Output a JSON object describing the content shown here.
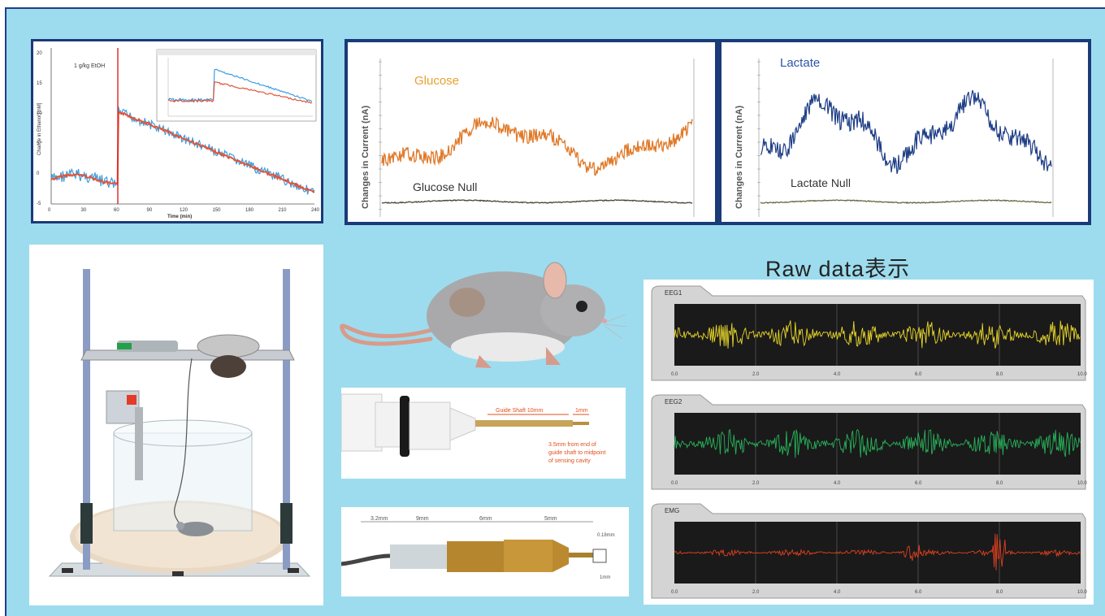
{
  "ethanol_chart": {
    "annotation": "1 g/kg EtOH",
    "ylabel": "Change in Ethanol [mM]",
    "xlabel": "Time (min)",
    "x_ticks": [
      "0",
      "30",
      "60",
      "90",
      "120",
      "150",
      "180",
      "210",
      "240"
    ],
    "y_ticks": [
      "20",
      "15",
      "10",
      "5",
      "0",
      "-5"
    ],
    "colors": {
      "raw": "#3a9ee0",
      "fit": "#e0553a",
      "marker": "#e02020"
    }
  },
  "glucose_chart": {
    "title": "Glucose",
    "null_label": "Glucose Null",
    "ylabel": "Changes in Current (nA)",
    "colors": {
      "trace": "#e07a2a",
      "title": "#e8a030",
      "null": "#444433"
    }
  },
  "lactate_chart": {
    "title": "Lactate",
    "null_label": "Lactate Null",
    "ylabel": "Changes in Current (nA)",
    "colors": {
      "trace": "#1f3e86",
      "title": "#2d55a6",
      "null": "#666644"
    }
  },
  "raw_data": {
    "heading": "Raw data表示",
    "channels": [
      {
        "name": "EEG1",
        "color": "#e8d62a"
      },
      {
        "name": "EEG2",
        "color": "#27b35a"
      },
      {
        "name": "EMG",
        "color": "#e04020"
      }
    ],
    "x_ticks": [
      "0.0",
      "2.0",
      "4.0",
      "6.0",
      "8.0",
      "10.0"
    ]
  },
  "probe_diagram": {
    "guide_label": "Guide Shaft 10mm",
    "tip_label": "1mm",
    "note_line1": "3.5mm from end of",
    "note_line2": "guide shaft to midpoint",
    "note_line3": "of sensing cavity",
    "accent": "#e0501e"
  },
  "electrode_diagram": {
    "dims": [
      "3.2mm",
      "9mm",
      "6mm",
      "5mm"
    ],
    "tip_dims": [
      "0.18mm",
      "1mm"
    ]
  }
}
